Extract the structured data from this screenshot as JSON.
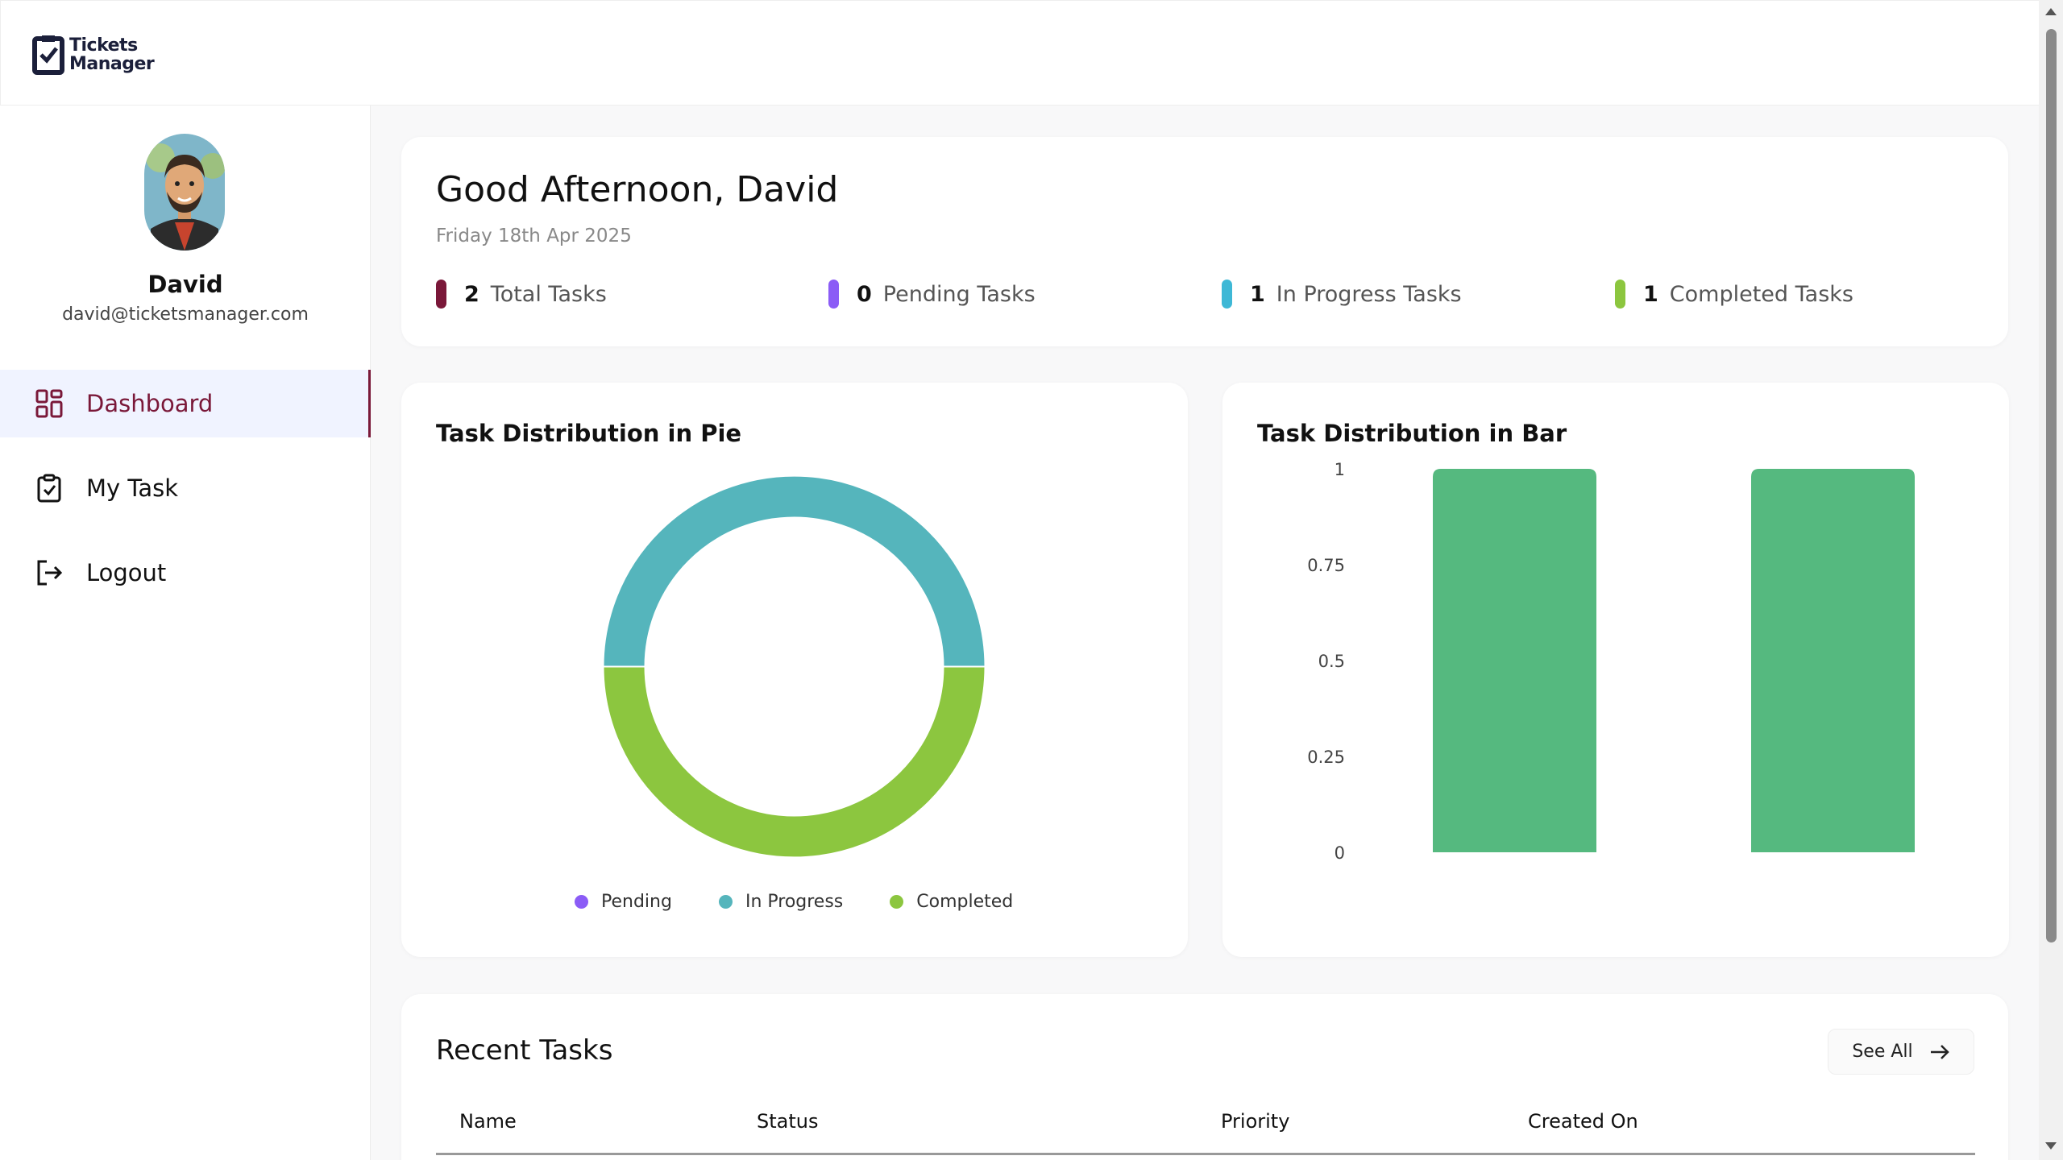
{
  "app": {
    "logo_line1": "Tickets",
    "logo_line2": "Manager"
  },
  "user": {
    "name": "David",
    "email": "david@ticketsmanager.com"
  },
  "nav": {
    "items": [
      {
        "label": "Dashboard",
        "icon": "dashboard-grid-icon",
        "active": true
      },
      {
        "label": "My Task",
        "icon": "clipboard-check-icon",
        "active": false
      },
      {
        "label": "Logout",
        "icon": "logout-icon",
        "active": false
      }
    ]
  },
  "header": {
    "greeting": "Good Afternoon, David",
    "date": "Friday 18th Apr 2025"
  },
  "stats": [
    {
      "count": "2",
      "label": "Total Tasks",
      "color": "#7a1839"
    },
    {
      "count": "0",
      "label": "Pending Tasks",
      "color": "#8b5cf6"
    },
    {
      "count": "1",
      "label": "In Progress Tasks",
      "color": "#3eb8d6"
    },
    {
      "count": "1",
      "label": "Completed Tasks",
      "color": "#8cc63f"
    }
  ],
  "pie": {
    "title": "Task Distribution in Pie",
    "legend": [
      {
        "label": "Pending",
        "color": "#8b5cf6"
      },
      {
        "label": "In Progress",
        "color": "#55b5bc"
      },
      {
        "label": "Completed",
        "color": "#8cc63f"
      }
    ]
  },
  "bar": {
    "title": "Task Distribution in Bar"
  },
  "chart_data": [
    {
      "type": "pie",
      "title": "Task Distribution in Pie",
      "categories": [
        "Pending",
        "In Progress",
        "Completed"
      ],
      "values": [
        0,
        1,
        1
      ],
      "colors": [
        "#8b5cf6",
        "#55b5bc",
        "#8cc63f"
      ],
      "legend": "bottom"
    },
    {
      "type": "bar",
      "title": "Task Distribution in Bar",
      "categories": [
        "",
        ""
      ],
      "values": [
        1,
        1
      ],
      "ylim": [
        0,
        1
      ],
      "yticks": [
        "0",
        "0.25",
        "0.5",
        "0.75",
        "1"
      ],
      "color": "#55b97f"
    }
  ],
  "recent": {
    "title": "Recent Tasks",
    "see_all": "See All",
    "columns": [
      "Name",
      "Status",
      "Priority",
      "Created On"
    ]
  }
}
